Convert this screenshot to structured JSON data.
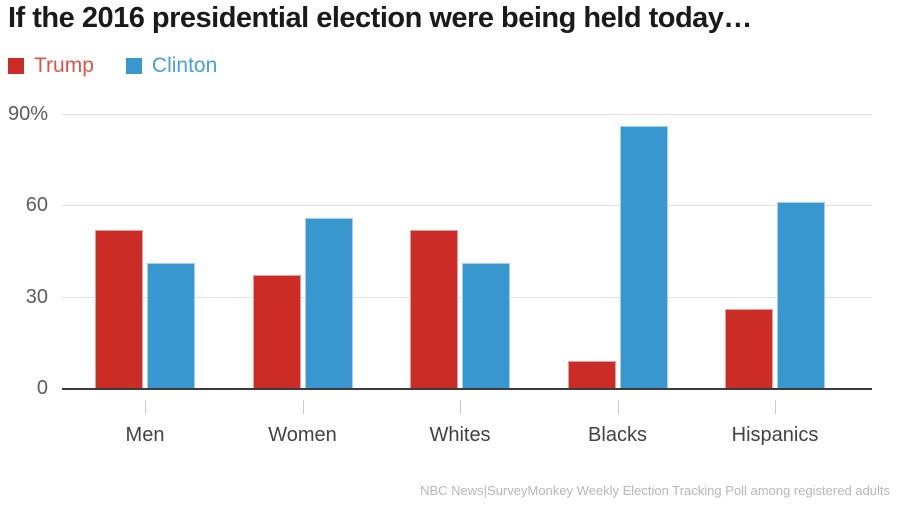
{
  "title": "If the 2016 presidential election were being held today…",
  "source": "NBC News|SurveyMonkey Weekly Election Tracking Poll among registered adults",
  "legend": [
    {
      "label": "Trump",
      "swatch_color": "#cb2c26",
      "text_color": "#df5349"
    },
    {
      "label": "Clinton",
      "swatch_color": "#3897ce",
      "text_color": "#4aa0d6"
    }
  ],
  "colors": {
    "trump": "#cb2c26",
    "clinton": "#3897ce",
    "gridline": "#e2e2e2",
    "baseline": "#3b3b3b",
    "title_text": "#1a1a1a",
    "axis_text": "#5c5c5c",
    "source_text": "#b7b7b7"
  },
  "chart_data": {
    "type": "bar",
    "title": "If the 2016 presidential election were being held today…",
    "categories": [
      "Men",
      "Women",
      "Whites",
      "Blacks",
      "Hispanics"
    ],
    "series": [
      {
        "name": "Trump",
        "color": "#cb2c26",
        "values": [
          52,
          37,
          52,
          9,
          26
        ]
      },
      {
        "name": "Clinton",
        "color": "#3897ce",
        "values": [
          41,
          56,
          41,
          86,
          61
        ]
      }
    ],
    "xlabel": "",
    "ylabel": "",
    "ylim": [
      0,
      90
    ],
    "grid": true,
    "legend_position": "top-left",
    "y_ticks": [
      {
        "value": 90,
        "label": "90%"
      },
      {
        "value": 60,
        "label": "60"
      },
      {
        "value": 30,
        "label": "30"
      },
      {
        "value": 0,
        "label": "0"
      }
    ]
  }
}
